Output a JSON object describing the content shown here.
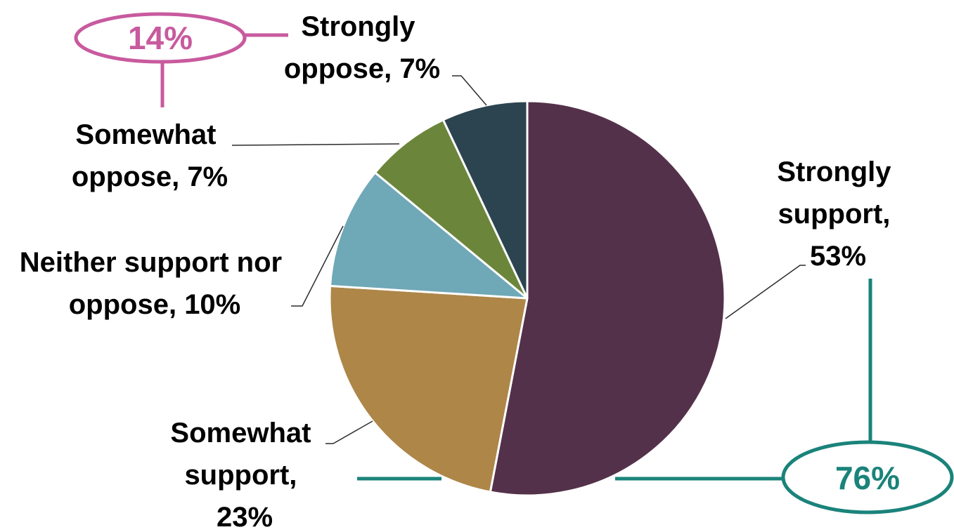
{
  "chart_data": {
    "type": "pie",
    "slices": [
      {
        "label_lines": [
          "Strongly",
          "support,",
          "53%"
        ],
        "value": 53,
        "color": "#54314A"
      },
      {
        "label_lines": [
          "Somewhat",
          "support,",
          "23%"
        ],
        "value": 23,
        "color": "#AD8648"
      },
      {
        "label_lines": [
          "Neither support nor",
          "oppose, 10%"
        ],
        "value": 10,
        "color": "#6FA8B7"
      },
      {
        "label_lines": [
          "Somewhat",
          "oppose, 7%"
        ],
        "value": 7,
        "color": "#6B863B"
      },
      {
        "label_lines": [
          "Strongly",
          "oppose, 7%"
        ],
        "value": 7,
        "color": "#2C4450"
      }
    ],
    "callouts": [
      {
        "text": "14%",
        "color": "#C85A9E",
        "groups": [
          "Somewhat oppose",
          "Strongly oppose"
        ]
      },
      {
        "text": "76%",
        "color": "#1A837A",
        "groups": [
          "Strongly support",
          "Somewhat support"
        ]
      }
    ]
  }
}
